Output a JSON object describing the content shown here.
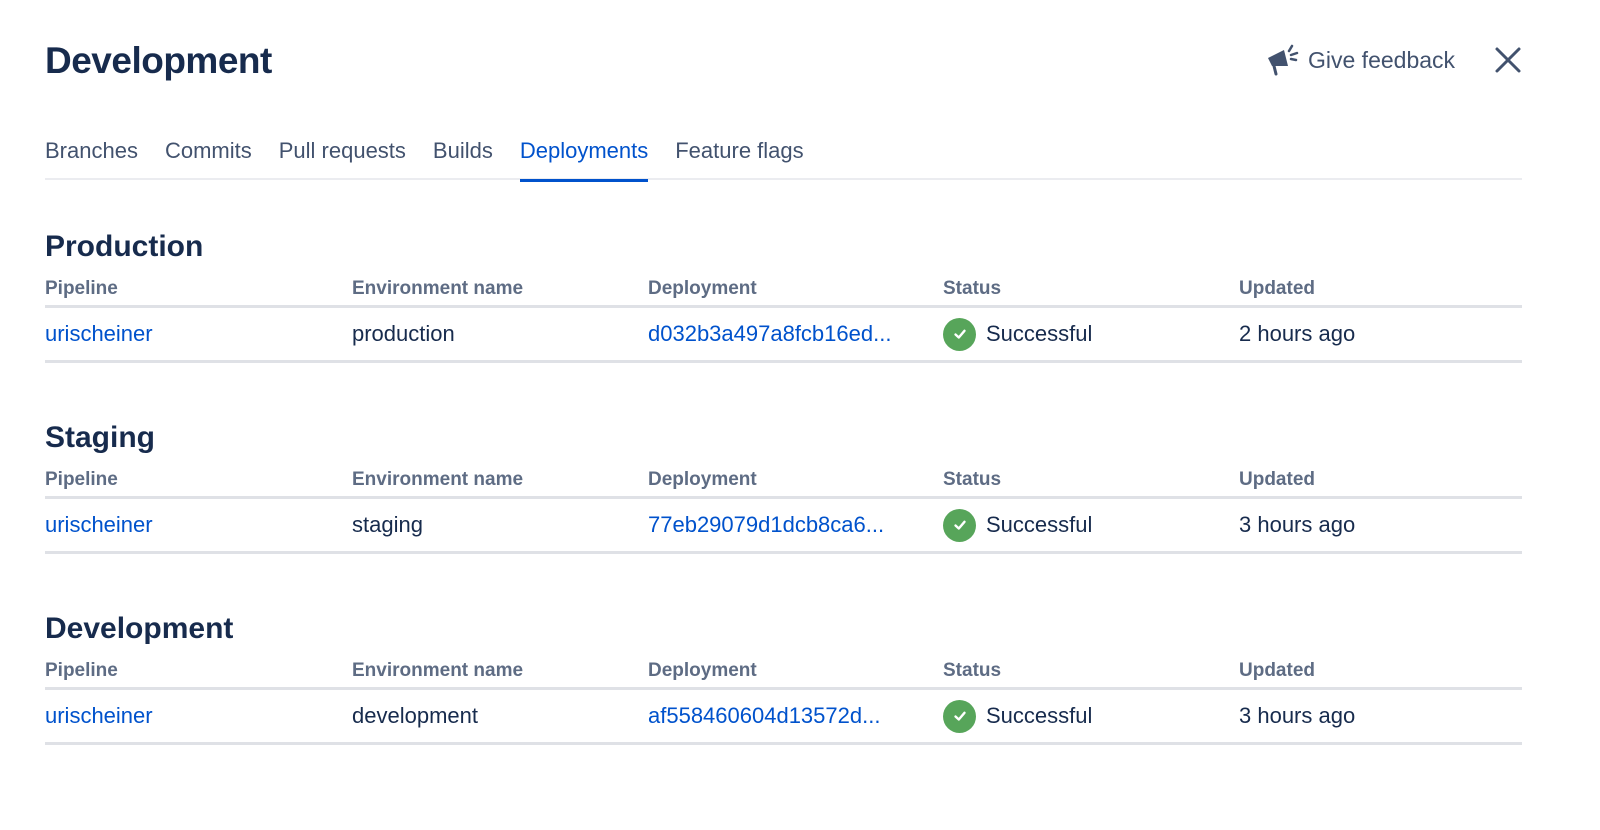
{
  "header": {
    "title": "Development",
    "feedback_label": "Give feedback",
    "feedback_icon": "megaphone-icon",
    "close_icon": "close-icon"
  },
  "tabs": [
    {
      "label": "Branches"
    },
    {
      "label": "Commits"
    },
    {
      "label": "Pull requests"
    },
    {
      "label": "Builds"
    },
    {
      "label": "Deployments",
      "active": true
    },
    {
      "label": "Feature flags"
    }
  ],
  "columns": {
    "pipeline": "Pipeline",
    "environment": "Environment name",
    "deployment": "Deployment",
    "status": "Status",
    "updated": "Updated"
  },
  "colors": {
    "accent": "#0052cc",
    "success": "#57a55a",
    "text": "#172b4d"
  },
  "sections": [
    {
      "title": "Production",
      "rows": [
        {
          "pipeline": "urischeiner",
          "environment": "production",
          "deployment": "d032b3a497a8fcb16ed...",
          "status": "Successful",
          "updated": "2 hours ago"
        }
      ]
    },
    {
      "title": "Staging",
      "rows": [
        {
          "pipeline": "urischeiner",
          "environment": "staging",
          "deployment": "77eb29079d1dcb8ca6...",
          "status": "Successful",
          "updated": "3 hours ago"
        }
      ]
    },
    {
      "title": "Development",
      "rows": [
        {
          "pipeline": "urischeiner",
          "environment": "development",
          "deployment": "af558460604d13572d...",
          "status": "Successful",
          "updated": "3 hours ago"
        }
      ]
    }
  ]
}
